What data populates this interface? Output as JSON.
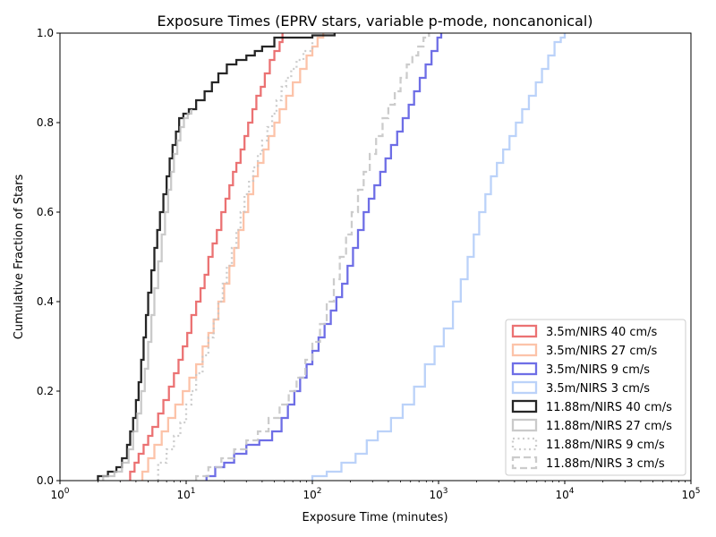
{
  "chart_data": {
    "type": "line",
    "title": "Exposure Times (EPRV stars, variable p-mode, noncanonical)",
    "xlabel": "Exposure Time (minutes)",
    "ylabel": "Cumulative Fraction of Stars",
    "x_scale": "log",
    "xlim": [
      1,
      100000
    ],
    "ylim": [
      0,
      1
    ],
    "grid": false,
    "legend_position": "lower-right",
    "x_ticks": [
      {
        "value": 1,
        "base": "10",
        "exp": "0"
      },
      {
        "value": 10,
        "base": "10",
        "exp": "1"
      },
      {
        "value": 100,
        "base": "10",
        "exp": "2"
      },
      {
        "value": 1000,
        "base": "10",
        "exp": "3"
      },
      {
        "value": 10000,
        "base": "10",
        "exp": "4"
      },
      {
        "value": 100000,
        "base": "10",
        "exp": "5"
      }
    ],
    "y_ticks": [
      {
        "value": 0,
        "label": "0.0"
      },
      {
        "value": 0.2,
        "label": "0.2"
      },
      {
        "value": 0.4,
        "label": "0.4"
      },
      {
        "value": 0.6,
        "label": "0.6"
      },
      {
        "value": 0.8,
        "label": "0.8"
      },
      {
        "value": 1,
        "label": "1.0"
      }
    ],
    "series": [
      {
        "name": "3.5m/NIRS 40 cm/s",
        "color": "#e8595a",
        "dash": "solid",
        "opacity": 0.85,
        "x": [
          3.6,
          3.9,
          4.2,
          4.6,
          5.0,
          5.4,
          6.0,
          6.6,
          7.3,
          8.0,
          8.7,
          9.4,
          10.2,
          11.0,
          12.0,
          13.0,
          14.0,
          15.0,
          16.2,
          17.5,
          19.0,
          20.5,
          22.0,
          23.5,
          25.0,
          27.0,
          29.0,
          31.0,
          33.5,
          36.0,
          39.0,
          42.0,
          46.0,
          50.0,
          55.0,
          58.0
        ],
        "y": [
          0.02,
          0.04,
          0.06,
          0.08,
          0.1,
          0.12,
          0.15,
          0.18,
          0.21,
          0.24,
          0.27,
          0.3,
          0.33,
          0.37,
          0.4,
          0.43,
          0.46,
          0.5,
          0.53,
          0.56,
          0.6,
          0.63,
          0.66,
          0.69,
          0.71,
          0.74,
          0.77,
          0.8,
          0.83,
          0.86,
          0.88,
          0.91,
          0.94,
          0.96,
          0.98,
          1.0
        ]
      },
      {
        "name": "3.5m/NIRS 27 cm/s",
        "color": "#fcb99a",
        "dash": "solid",
        "opacity": 0.85,
        "x": [
          4.5,
          5.0,
          5.6,
          6.4,
          7.2,
          8.2,
          9.4,
          10.6,
          12.0,
          13.5,
          15.0,
          16.5,
          18.0,
          20.0,
          22.0,
          24.0,
          26.0,
          28.5,
          31.0,
          34.0,
          37.0,
          41.0,
          45.0,
          50.0,
          55.0,
          62.0,
          70.0,
          80.0,
          90.0,
          100.0,
          110.0,
          122.0
        ],
        "y": [
          0.02,
          0.05,
          0.08,
          0.11,
          0.14,
          0.17,
          0.2,
          0.23,
          0.26,
          0.3,
          0.33,
          0.36,
          0.4,
          0.44,
          0.48,
          0.52,
          0.56,
          0.6,
          0.64,
          0.68,
          0.71,
          0.74,
          0.77,
          0.8,
          0.83,
          0.86,
          0.89,
          0.92,
          0.95,
          0.97,
          0.99,
          1.0
        ]
      },
      {
        "name": "3.5m/NIRS 9 cm/s",
        "color": "#4a4ae0",
        "dash": "solid",
        "opacity": 0.8,
        "x": [
          14.5,
          17.0,
          20.0,
          24.0,
          30.0,
          38.0,
          48.0,
          57.0,
          64.0,
          72.0,
          80.0,
          90.0,
          100.0,
          112.0,
          125.0,
          140.0,
          155.0,
          172.0,
          190.0,
          210.0,
          230.0,
          255.0,
          280.0,
          310.0,
          345.0,
          380.0,
          420.0,
          470.0,
          520.0,
          580.0,
          640.0,
          710.0,
          790.0,
          880.0,
          980.0,
          1050.0
        ],
        "y": [
          0.01,
          0.03,
          0.04,
          0.06,
          0.08,
          0.09,
          0.11,
          0.14,
          0.17,
          0.2,
          0.23,
          0.26,
          0.29,
          0.32,
          0.35,
          0.38,
          0.41,
          0.44,
          0.48,
          0.52,
          0.56,
          0.6,
          0.63,
          0.66,
          0.69,
          0.72,
          0.75,
          0.78,
          0.81,
          0.84,
          0.87,
          0.9,
          0.93,
          0.96,
          0.99,
          1.0
        ]
      },
      {
        "name": "3.5m/NIRS 3 cm/s",
        "color": "#b4cdf8",
        "dash": "solid",
        "opacity": 0.9,
        "x": [
          100.0,
          130.0,
          170.0,
          220.0,
          270.0,
          330.0,
          420.0,
          520.0,
          640.0,
          780.0,
          930.0,
          1100.0,
          1300.0,
          1500.0,
          1700.0,
          1900.0,
          2100.0,
          2350.0,
          2600.0,
          2900.0,
          3250.0,
          3650.0,
          4100.0,
          4600.0,
          5200.0,
          5900.0,
          6600.0,
          7400.0,
          8300.0,
          9300.0,
          10000.0
        ],
        "y": [
          0.01,
          0.02,
          0.04,
          0.06,
          0.09,
          0.11,
          0.14,
          0.17,
          0.21,
          0.26,
          0.3,
          0.34,
          0.4,
          0.45,
          0.5,
          0.55,
          0.6,
          0.64,
          0.68,
          0.71,
          0.74,
          0.77,
          0.8,
          0.83,
          0.86,
          0.89,
          0.92,
          0.95,
          0.98,
          0.99,
          1.0
        ]
      },
      {
        "name": "11.88m/NIRS 40 cm/s",
        "color": "#000000",
        "dash": "solid",
        "opacity": 0.85,
        "x": [
          2.0,
          2.4,
          2.8,
          3.1,
          3.4,
          3.6,
          3.8,
          4.0,
          4.2,
          4.4,
          4.6,
          4.8,
          5.0,
          5.3,
          5.6,
          5.9,
          6.2,
          6.6,
          7.0,
          7.4,
          7.8,
          8.3,
          8.8,
          9.5,
          10.5,
          12.0,
          14.0,
          16.0,
          18.0,
          21.0,
          25.0,
          30.0,
          35.0,
          40.0,
          50.0,
          70.0,
          100.0,
          150.0
        ],
        "y": [
          0.01,
          0.02,
          0.03,
          0.05,
          0.08,
          0.11,
          0.14,
          0.18,
          0.22,
          0.27,
          0.32,
          0.37,
          0.42,
          0.47,
          0.52,
          0.56,
          0.6,
          0.64,
          0.68,
          0.72,
          0.75,
          0.78,
          0.81,
          0.82,
          0.83,
          0.85,
          0.87,
          0.89,
          0.91,
          0.93,
          0.94,
          0.95,
          0.96,
          0.97,
          0.99,
          0.99,
          0.995,
          1.0
        ]
      },
      {
        "name": "11.88m/NIRS 27 cm/s",
        "color": "#bdbdbd",
        "dash": "solid",
        "opacity": 0.8,
        "x": [
          2.2,
          2.7,
          3.1,
          3.5,
          3.8,
          4.1,
          4.4,
          4.7,
          5.0,
          5.3,
          5.6,
          6.0,
          6.4,
          6.8,
          7.2,
          7.6,
          8.0,
          8.5,
          9.0,
          9.6,
          10.3,
          11.0
        ],
        "y": [
          0.01,
          0.02,
          0.04,
          0.07,
          0.11,
          0.15,
          0.2,
          0.25,
          0.31,
          0.37,
          0.43,
          0.49,
          0.55,
          0.6,
          0.65,
          0.69,
          0.73,
          0.76,
          0.79,
          0.81,
          0.82,
          0.83
        ]
      },
      {
        "name": "11.88m/NIRS 9 cm/s",
        "color": "#c6c6c6",
        "dash": "dotted",
        "opacity": 0.9,
        "x": [
          6.0,
          7.0,
          8.0,
          9.0,
          10.0,
          11.0,
          12.0,
          13.5,
          15.0,
          16.5,
          18.0,
          19.5,
          21.0,
          23.0,
          25.0,
          27.0,
          29.0,
          31.5,
          34.0,
          37.0,
          40.0,
          44.0,
          48.0,
          52.0,
          57.0,
          62.0,
          68.0,
          75.0,
          85.0,
          100.0
        ],
        "y": [
          0.04,
          0.07,
          0.1,
          0.13,
          0.17,
          0.2,
          0.24,
          0.28,
          0.32,
          0.36,
          0.4,
          0.44,
          0.48,
          0.52,
          0.56,
          0.6,
          0.64,
          0.67,
          0.7,
          0.73,
          0.76,
          0.79,
          0.82,
          0.85,
          0.88,
          0.9,
          0.92,
          0.94,
          0.96,
          0.98
        ]
      },
      {
        "name": "11.88m/NIRS 3 cm/s",
        "color": "#c6c6c6",
        "dash": "dashed",
        "opacity": 0.9,
        "x": [
          12.0,
          15.0,
          19.0,
          24.0,
          30.0,
          37.0,
          45.0,
          55.0,
          65.0,
          75.0,
          88.0,
          100.0,
          115.0,
          130.0,
          148.0,
          165.0,
          185.0,
          205.0,
          230.0,
          255.0,
          285.0,
          320.0,
          360.0,
          400.0,
          450.0,
          500.0,
          560.0,
          620.0,
          690.0,
          760.0,
          840.0
        ],
        "y": [
          0.01,
          0.03,
          0.05,
          0.07,
          0.09,
          0.11,
          0.14,
          0.17,
          0.2,
          0.23,
          0.27,
          0.31,
          0.35,
          0.4,
          0.45,
          0.5,
          0.55,
          0.6,
          0.65,
          0.69,
          0.73,
          0.77,
          0.81,
          0.84,
          0.87,
          0.9,
          0.93,
          0.95,
          0.97,
          0.99,
          1.0
        ]
      }
    ]
  }
}
